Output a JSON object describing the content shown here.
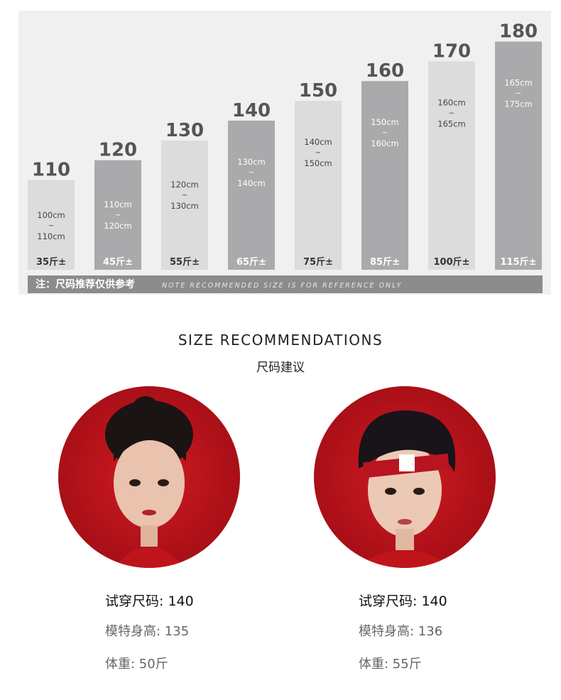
{
  "size_chart": {
    "range_mark": "~",
    "bar_colors": [
      "#dddcdd",
      "#aaa9ab"
    ],
    "sizes": [
      {
        "size": 110,
        "height_from": "100cm",
        "height_to": "110cm",
        "weight": "35斤±"
      },
      {
        "size": 120,
        "height_from": "110cm",
        "height_to": "120cm",
        "weight": "45斤±"
      },
      {
        "size": 130,
        "height_from": "120cm",
        "height_to": "130cm",
        "weight": "55斤±"
      },
      {
        "size": 140,
        "height_from": "130cm",
        "height_to": "140cm",
        "weight": "65斤±"
      },
      {
        "size": 150,
        "height_from": "140cm",
        "height_to": "150cm",
        "weight": "75斤±"
      },
      {
        "size": 160,
        "height_from": "150cm",
        "height_to": "160cm",
        "weight": "85斤±"
      },
      {
        "size": 170,
        "height_from": "160cm",
        "height_to": "165cm",
        "weight": "100斤±"
      },
      {
        "size": 180,
        "height_from": "165cm",
        "height_to": "175cm",
        "weight": "115斤±"
      }
    ],
    "note_cn": "注：尺码推荐仅供参考",
    "note_en": "NOTE RECOMMENDED SIZE IS FOR REFERENCE ONLY"
  },
  "section": {
    "title": "SIZE RECOMMENDATIONS",
    "subtitle": "尺码建议"
  },
  "models": [
    {
      "try_size": "试穿尺码: 140",
      "model_height": "模特身高: 135",
      "weight": "体重: 50斤"
    },
    {
      "try_size": "试穿尺码: 140",
      "model_height": "模特身高: 136",
      "weight": "体重: 55斤"
    }
  ]
}
